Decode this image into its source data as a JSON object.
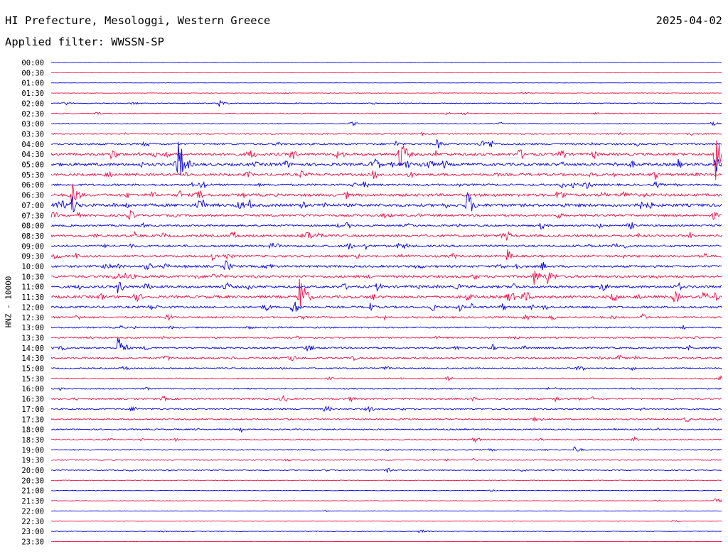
{
  "header": {
    "station": "HI Prefecture, Mesologgi, Western Greece",
    "date": "2025-04-02",
    "filter": "Applied filter: WWSSN-SP"
  },
  "chart_data": {
    "type": "line",
    "ylabel": "HNZ - 10000",
    "row_labels": [
      "00:00",
      "00:30",
      "01:00",
      "01:30",
      "02:00",
      "02:30",
      "03:00",
      "03:30",
      "04:00",
      "04:30",
      "05:00",
      "05:30",
      "06:00",
      "06:30",
      "07:00",
      "07:30",
      "08:00",
      "08:30",
      "09:00",
      "09:30",
      "10:00",
      "10:30",
      "11:00",
      "11:30",
      "12:00",
      "12:30",
      "13:00",
      "13:30",
      "14:00",
      "14:30",
      "15:00",
      "15:30",
      "16:00",
      "16:30",
      "17:00",
      "17:30",
      "18:00",
      "18:30",
      "19:00",
      "19:30",
      "20:00",
      "20:30",
      "21:00",
      "21:30",
      "22:00",
      "22:30",
      "23:00",
      "23:30"
    ],
    "trace_colors": [
      "#0000dd",
      "#ee1144"
    ],
    "x_unit": "fraction of 30-minute row",
    "noise_level": [
      0.3,
      0.3,
      0.3,
      0.6,
      1.0,
      1.1,
      1.0,
      1.5,
      2.2,
      3.2,
      3.5,
      3.0,
      2.4,
      3.2,
      3.6,
      2.6,
      2.2,
      2.8,
      2.6,
      2.6,
      2.6,
      2.9,
      3.0,
      3.3,
      2.6,
      2.2,
      1.8,
      1.8,
      2.0,
      2.0,
      1.6,
      1.4,
      1.6,
      2.0,
      1.8,
      1.6,
      1.6,
      1.4,
      1.3,
      1.1,
      1.1,
      0.8,
      0.7,
      0.6,
      0.5,
      0.5,
      0.6,
      0.3
    ],
    "events": [
      {
        "row": 4,
        "x": 0.02,
        "amp": 4
      },
      {
        "row": 4,
        "x": 0.25,
        "amp": 6
      },
      {
        "row": 8,
        "x": 0.575,
        "amp": 8
      },
      {
        "row": 9,
        "x": 0.09,
        "amp": 10
      },
      {
        "row": 9,
        "x": 0.52,
        "amp": 26
      },
      {
        "row": 9,
        "x": 0.99,
        "amp": 40
      },
      {
        "row": 10,
        "x": 0.19,
        "amp": 40
      },
      {
        "row": 10,
        "x": 0.99,
        "amp": 14
      },
      {
        "row": 12,
        "x": 0.76,
        "amp": 6
      },
      {
        "row": 12,
        "x": 0.9,
        "amp": 6
      },
      {
        "row": 13,
        "x": 0.03,
        "amp": 24
      },
      {
        "row": 14,
        "x": 0.03,
        "amp": 16
      },
      {
        "row": 14,
        "x": 0.62,
        "amp": 22
      },
      {
        "row": 16,
        "x": 0.73,
        "amp": 6
      },
      {
        "row": 17,
        "x": 0.27,
        "amp": 8
      },
      {
        "row": 19,
        "x": 0.24,
        "amp": 7
      },
      {
        "row": 19,
        "x": 0.68,
        "amp": 10
      },
      {
        "row": 20,
        "x": 0.26,
        "amp": 10
      },
      {
        "row": 20,
        "x": 0.69,
        "amp": 8
      },
      {
        "row": 21,
        "x": 0.11,
        "amp": 8
      },
      {
        "row": 21,
        "x": 0.72,
        "amp": 14
      },
      {
        "row": 21,
        "x": 0.74,
        "amp": 12
      },
      {
        "row": 22,
        "x": 0.1,
        "amp": 12
      },
      {
        "row": 22,
        "x": 0.14,
        "amp": 8
      },
      {
        "row": 23,
        "x": 0.37,
        "amp": 36
      },
      {
        "row": 23,
        "x": 0.62,
        "amp": 8
      },
      {
        "row": 24,
        "x": 0.36,
        "amp": 14
      },
      {
        "row": 25,
        "x": 0.88,
        "amp": 6
      },
      {
        "row": 28,
        "x": 0.1,
        "amp": 20
      },
      {
        "row": 33,
        "x": 0.75,
        "amp": 5
      },
      {
        "row": 38,
        "x": 0.78,
        "amp": 6
      },
      {
        "row": 40,
        "x": 0.5,
        "amp": 4
      },
      {
        "row": 43,
        "x": 0.99,
        "amp": 4
      },
      {
        "row": 46,
        "x": 0.55,
        "amp": 4
      }
    ]
  }
}
